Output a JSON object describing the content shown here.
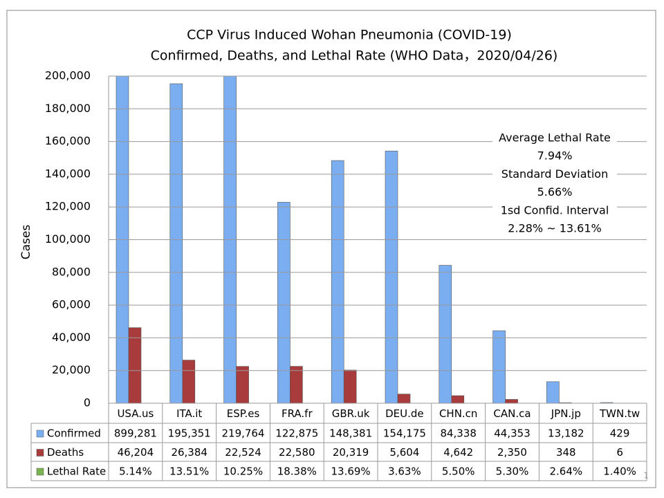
{
  "chart_data": {
    "type": "bar",
    "title": [
      "CCP Virus Induced Wohan Pneumonia (COVID-19)",
      "Confirmed, Deaths, and Lethal Rate (WHO Data，2020/04/26)"
    ],
    "y_label": "Cases",
    "categories": [
      "USA.us",
      "ITA.it",
      "ESP.es",
      "FRA.fr",
      "GBR.uk",
      "DEU.de",
      "CHN.cn",
      "CAN.ca",
      "JPN.jp",
      "TWN.tw"
    ],
    "series": [
      {
        "name": "Confirmed",
        "color": "#7aaef0",
        "values": [
          899281,
          195351,
          219764,
          122875,
          148381,
          154175,
          84338,
          44353,
          13182,
          429
        ],
        "value_labels": [
          "899,281",
          "195,351",
          "219,764",
          "122,875",
          "148,381",
          "154,175",
          "84,338",
          "44,353",
          "13,182",
          "429"
        ]
      },
      {
        "name": "Deaths",
        "color": "#a83c3c",
        "values": [
          46204,
          26384,
          22524,
          22580,
          20319,
          5604,
          4642,
          2350,
          348,
          6
        ],
        "value_labels": [
          "46,204",
          "26,384",
          "22,524",
          "22,580",
          "20,319",
          "5,604",
          "4,642",
          "2,350",
          "348",
          "6"
        ]
      },
      {
        "name": "Lethal Rate",
        "color": "#7cb352",
        "axis": "table",
        "values": [
          5.14,
          13.51,
          10.25,
          18.38,
          13.69,
          3.63,
          5.5,
          5.3,
          2.64,
          1.4
        ],
        "value_labels": [
          "5.14%",
          "13.51%",
          "10.25%",
          "18.38%",
          "13.69%",
          "3.63%",
          "5.50%",
          "5.30%",
          "2.64%",
          "1.40%"
        ]
      }
    ],
    "ylim": [
      0,
      200000
    ],
    "yticks": [
      {
        "value": 0,
        "label": "0"
      },
      {
        "value": 20000,
        "label": "20,000"
      },
      {
        "value": 40000,
        "label": "40,000"
      },
      {
        "value": 60000,
        "label": "60,000"
      },
      {
        "value": 80000,
        "label": "80,000"
      },
      {
        "value": 100000,
        "label": "100,000"
      },
      {
        "value": 120000,
        "label": "120,000"
      },
      {
        "value": 140000,
        "label": "140,000"
      },
      {
        "value": 160000,
        "label": "160,000"
      },
      {
        "value": 180000,
        "label": "180,000"
      },
      {
        "value": 200000,
        "label": "200,000"
      }
    ],
    "grid": true,
    "annotations": [
      "Average Lethal Rate",
      "7.94%",
      "Standard Deviation",
      "5.66%",
      "1sd Confid. Interval",
      "2.28% ~ 13.61%"
    ],
    "page_number": "1"
  }
}
